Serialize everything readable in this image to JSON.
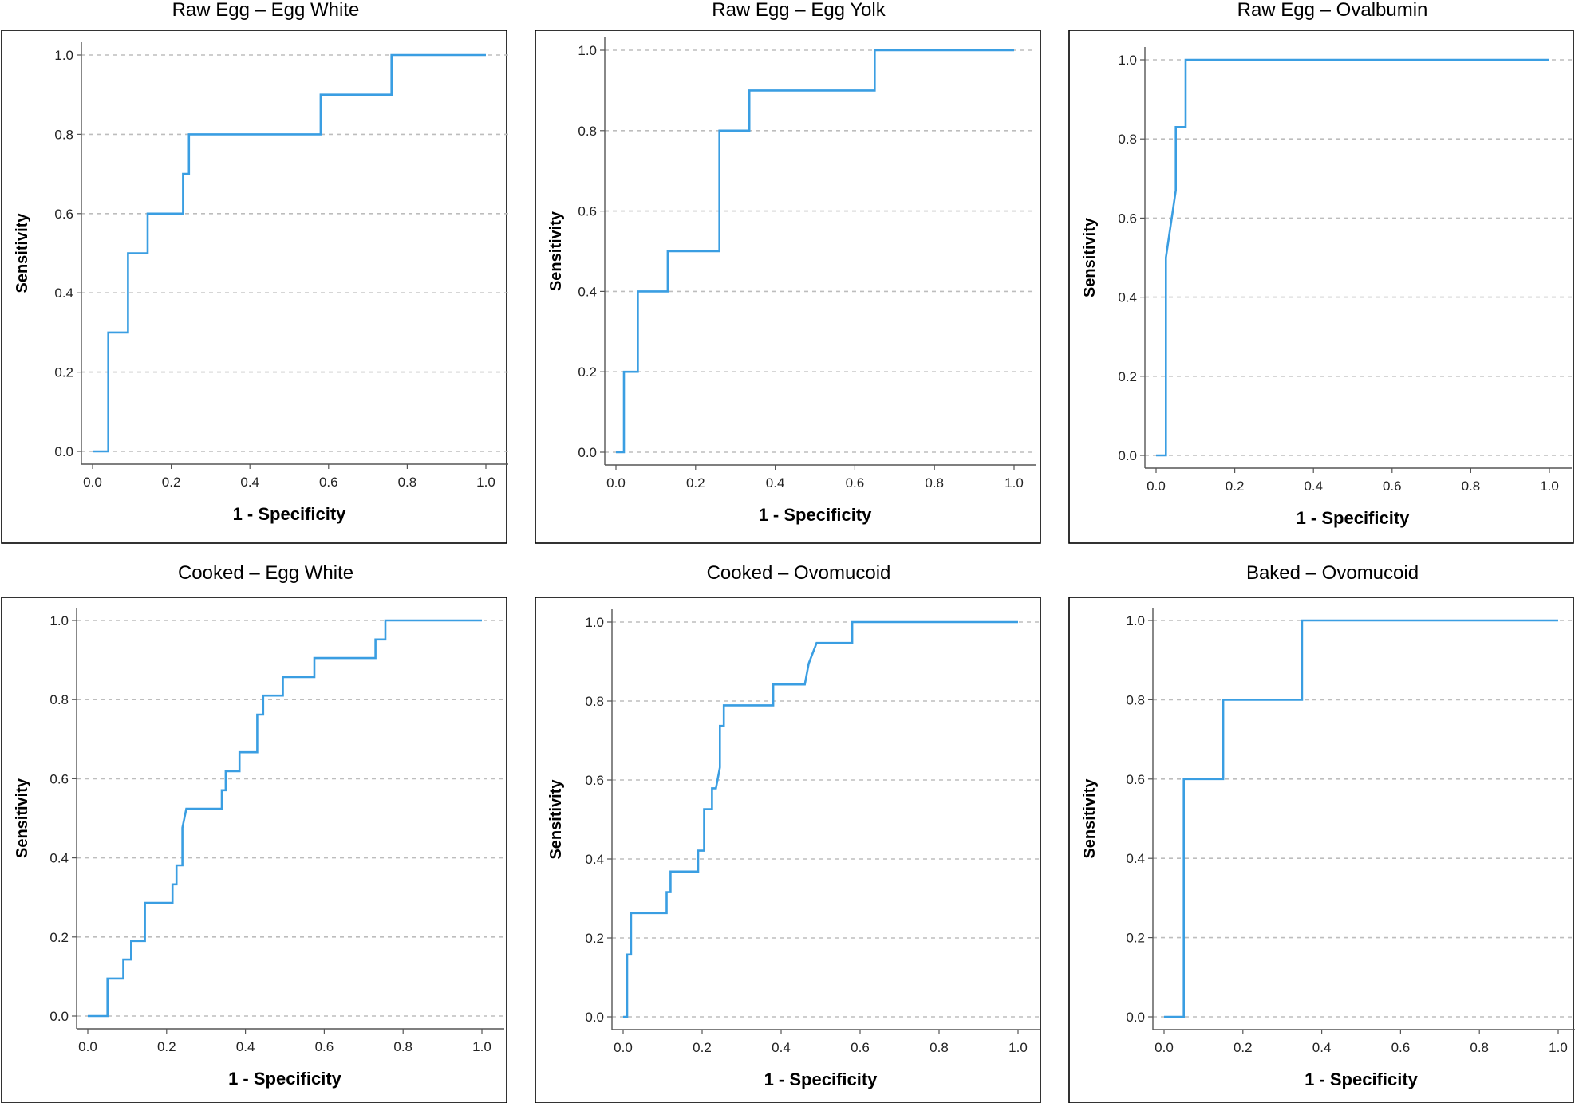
{
  "colors": {
    "curve": "#3a9ee2"
  },
  "chart_data": [
    {
      "type": "line",
      "title": "Raw Egg – Egg White",
      "xlabel": "1 - Specificity",
      "ylabel": "Sensitivity",
      "xlim": [
        0,
        1
      ],
      "ylim": [
        0,
        1
      ],
      "xticks": [
        "0.0",
        "0.2",
        "0.4",
        "0.6",
        "0.8",
        "1.0"
      ],
      "yticks": [
        "0.0",
        "0.2",
        "0.4",
        "0.6",
        "0.8",
        "1.0"
      ],
      "grid": "horizontal-dashed",
      "series": [
        {
          "points": [
            [
              0,
              0
            ],
            [
              0.04,
              0
            ],
            [
              0.04,
              0.3
            ],
            [
              0.09,
              0.3
            ],
            [
              0.09,
              0.5
            ],
            [
              0.14,
              0.5
            ],
            [
              0.14,
              0.6
            ],
            [
              0.23,
              0.6
            ],
            [
              0.23,
              0.7
            ],
            [
              0.245,
              0.7
            ],
            [
              0.245,
              0.8
            ],
            [
              0.58,
              0.8
            ],
            [
              0.58,
              0.9
            ],
            [
              0.76,
              0.9
            ],
            [
              0.76,
              1.0
            ],
            [
              1.0,
              1.0
            ]
          ]
        }
      ]
    },
    {
      "type": "line",
      "title": "Raw Egg – Egg Yolk",
      "xlabel": "1 - Specificity",
      "ylabel": "Sensitivity",
      "xlim": [
        0,
        1
      ],
      "ylim": [
        0,
        1
      ],
      "xticks": [
        "0.0",
        "0.2",
        "0.4",
        "0.6",
        "0.8",
        "1.0"
      ],
      "yticks": [
        "0.0",
        "0.2",
        "0.4",
        "0.6",
        "0.8",
        "1.0"
      ],
      "grid": "horizontal-dashed",
      "series": [
        {
          "points": [
            [
              0,
              0
            ],
            [
              0.02,
              0
            ],
            [
              0.02,
              0.2
            ],
            [
              0.055,
              0.2
            ],
            [
              0.055,
              0.4
            ],
            [
              0.13,
              0.4
            ],
            [
              0.13,
              0.5
            ],
            [
              0.26,
              0.5
            ],
            [
              0.26,
              0.8
            ],
            [
              0.335,
              0.8
            ],
            [
              0.335,
              0.9
            ],
            [
              0.65,
              0.9
            ],
            [
              0.65,
              1.0
            ],
            [
              1.0,
              1.0
            ]
          ]
        }
      ]
    },
    {
      "type": "line",
      "title": "Raw Egg – Ovalbumin",
      "xlabel": "1 - Specificity",
      "ylabel": "Sensitivity",
      "xlim": [
        0,
        1
      ],
      "ylim": [
        0,
        1
      ],
      "xticks": [
        "0.0",
        "0.2",
        "0.4",
        "0.6",
        "0.8",
        "1.0"
      ],
      "yticks": [
        "0.0",
        "0.2",
        "0.4",
        "0.6",
        "0.8",
        "1.0"
      ],
      "grid": "horizontal-dashed",
      "series": [
        {
          "points": [
            [
              0,
              0
            ],
            [
              0.025,
              0
            ],
            [
              0.025,
              0.5
            ],
            [
              0.05,
              0.67
            ],
            [
              0.05,
              0.83
            ],
            [
              0.075,
              0.83
            ],
            [
              0.075,
              1.0
            ],
            [
              1.0,
              1.0
            ]
          ]
        }
      ]
    },
    {
      "type": "line",
      "title": "Cooked – Egg White",
      "xlabel": "1 - Specificity",
      "ylabel": "Sensitivity",
      "xlim": [
        0,
        1
      ],
      "ylim": [
        0,
        1
      ],
      "xticks": [
        "0.0",
        "0.2",
        "0.4",
        "0.6",
        "0.8",
        "1.0"
      ],
      "yticks": [
        "0.0",
        "0.2",
        "0.4",
        "0.6",
        "0.8",
        "1.0"
      ],
      "grid": "horizontal-dashed",
      "series": [
        {
          "points": [
            [
              0,
              0
            ],
            [
              0.05,
              0
            ],
            [
              0.05,
              0.095
            ],
            [
              0.09,
              0.095
            ],
            [
              0.09,
              0.143
            ],
            [
              0.11,
              0.143
            ],
            [
              0.11,
              0.19
            ],
            [
              0.145,
              0.19
            ],
            [
              0.145,
              0.286
            ],
            [
              0.215,
              0.286
            ],
            [
              0.215,
              0.333
            ],
            [
              0.225,
              0.333
            ],
            [
              0.225,
              0.381
            ],
            [
              0.24,
              0.381
            ],
            [
              0.24,
              0.476
            ],
            [
              0.25,
              0.524
            ],
            [
              0.34,
              0.524
            ],
            [
              0.34,
              0.571
            ],
            [
              0.35,
              0.571
            ],
            [
              0.35,
              0.619
            ],
            [
              0.385,
              0.619
            ],
            [
              0.385,
              0.667
            ],
            [
              0.43,
              0.667
            ],
            [
              0.43,
              0.762
            ],
            [
              0.445,
              0.762
            ],
            [
              0.445,
              0.81
            ],
            [
              0.495,
              0.81
            ],
            [
              0.495,
              0.857
            ],
            [
              0.575,
              0.857
            ],
            [
              0.575,
              0.905
            ],
            [
              0.73,
              0.905
            ],
            [
              0.73,
              0.952
            ],
            [
              0.755,
              0.952
            ],
            [
              0.755,
              1.0
            ],
            [
              1.0,
              1.0
            ]
          ]
        }
      ]
    },
    {
      "type": "line",
      "title": "Cooked – Ovomucoid",
      "xlabel": "1 - Specificity",
      "ylabel": "Sensitivity",
      "xlim": [
        0,
        1
      ],
      "ylim": [
        0,
        1
      ],
      "xticks": [
        "0.0",
        "0.2",
        "0.4",
        "0.6",
        "0.8",
        "1.0"
      ],
      "yticks": [
        "0.0",
        "0.2",
        "0.4",
        "0.6",
        "0.8",
        "1.0"
      ],
      "grid": "horizontal-dashed",
      "series": [
        {
          "points": [
            [
              0,
              0
            ],
            [
              0.01,
              0
            ],
            [
              0.01,
              0.158
            ],
            [
              0.02,
              0.158
            ],
            [
              0.02,
              0.263
            ],
            [
              0.11,
              0.263
            ],
            [
              0.11,
              0.316
            ],
            [
              0.12,
              0.316
            ],
            [
              0.12,
              0.368
            ],
            [
              0.19,
              0.368
            ],
            [
              0.19,
              0.421
            ],
            [
              0.205,
              0.421
            ],
            [
              0.205,
              0.526
            ],
            [
              0.225,
              0.526
            ],
            [
              0.225,
              0.579
            ],
            [
              0.235,
              0.579
            ],
            [
              0.245,
              0.632
            ],
            [
              0.245,
              0.737
            ],
            [
              0.255,
              0.737
            ],
            [
              0.255,
              0.789
            ],
            [
              0.38,
              0.789
            ],
            [
              0.38,
              0.842
            ],
            [
              0.46,
              0.842
            ],
            [
              0.47,
              0.895
            ],
            [
              0.49,
              0.947
            ],
            [
              0.58,
              0.947
            ],
            [
              0.58,
              1.0
            ],
            [
              1.0,
              1.0
            ]
          ]
        }
      ]
    },
    {
      "type": "line",
      "title": "Baked – Ovomucoid",
      "xlabel": "1 - Specificity",
      "ylabel": "Sensitivity",
      "xlim": [
        0,
        1
      ],
      "ylim": [
        0,
        1
      ],
      "xticks": [
        "0.0",
        "0.2",
        "0.4",
        "0.6",
        "0.8",
        "1.0"
      ],
      "yticks": [
        "0.0",
        "0.2",
        "0.4",
        "0.6",
        "0.8",
        "1.0"
      ],
      "grid": "horizontal-dashed",
      "series": [
        {
          "points": [
            [
              0,
              0
            ],
            [
              0.05,
              0
            ],
            [
              0.05,
              0.6
            ],
            [
              0.15,
              0.6
            ],
            [
              0.15,
              0.8
            ],
            [
              0.35,
              0.8
            ],
            [
              0.35,
              1.0
            ],
            [
              1.0,
              1.0
            ]
          ]
        }
      ]
    }
  ]
}
